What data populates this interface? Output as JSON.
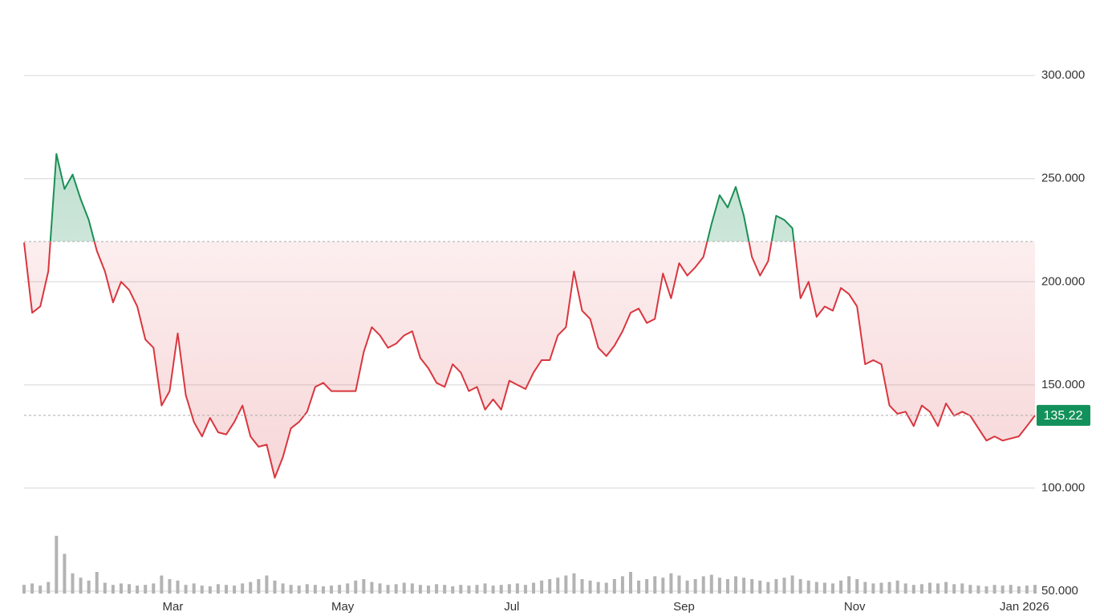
{
  "chart_data": {
    "type": "baseline",
    "values": [
      219,
      185,
      188,
      205,
      262,
      245,
      252,
      240,
      230,
      215,
      205,
      190,
      200,
      196,
      188,
      172,
      168,
      140,
      147,
      175,
      145,
      132,
      125,
      134,
      127,
      126,
      132,
      140,
      125,
      120,
      121,
      105,
      115,
      129,
      132,
      137,
      149,
      151,
      147,
      147,
      147,
      147,
      166,
      178,
      174,
      168,
      170,
      174,
      176,
      163,
      158,
      151,
      149,
      160,
      156,
      147,
      149,
      138,
      143,
      138,
      152,
      150,
      148,
      156,
      162,
      162,
      174,
      178,
      205,
      186,
      182,
      168,
      164,
      169,
      176,
      185,
      187,
      180,
      182,
      204,
      192,
      209,
      203,
      207,
      212,
      228,
      242,
      236,
      246,
      232,
      212,
      203,
      210,
      232,
      230,
      226,
      192,
      200,
      183,
      188,
      186,
      197,
      194,
      188,
      160,
      162,
      160,
      140,
      136,
      137,
      130,
      140,
      137,
      130,
      141,
      135,
      137,
      135,
      129,
      123,
      125,
      123,
      124,
      125,
      130,
      135.22
    ],
    "baseline": 219.5,
    "color_above": "#1a8f55",
    "color_below": "#d9363e",
    "last_price": 135.22,
    "last_price_color": "#13915a",
    "volume": {
      "color": "#b3b3b3",
      "lim": [
        0,
        100
      ],
      "values": [
        12,
        14,
        11,
        16,
        80,
        55,
        28,
        22,
        18,
        30,
        15,
        12,
        14,
        13,
        11,
        12,
        14,
        25,
        20,
        18,
        12,
        14,
        11,
        10,
        13,
        12,
        11,
        14,
        16,
        20,
        25,
        18,
        14,
        12,
        11,
        13,
        12,
        10,
        11,
        12,
        14,
        18,
        20,
        16,
        14,
        12,
        13,
        15,
        14,
        12,
        11,
        13,
        12,
        10,
        12,
        11,
        12,
        14,
        11,
        12,
        13,
        14,
        12,
        15,
        18,
        20,
        22,
        25,
        28,
        20,
        18,
        16,
        15,
        20,
        24,
        30,
        18,
        20,
        24,
        22,
        28,
        25,
        18,
        20,
        24,
        26,
        22,
        20,
        24,
        22,
        20,
        18,
        16,
        20,
        22,
        25,
        20,
        18,
        16,
        15,
        14,
        18,
        24,
        20,
        16,
        14,
        15,
        16,
        18,
        14,
        12,
        13,
        15,
        14,
        16,
        13,
        14,
        12,
        11,
        10,
        12,
        11,
        12,
        10,
        11,
        12
      ]
    },
    "xlim": [
      0,
      125
    ],
    "xticks": [
      {
        "value": 18.4,
        "label": "Mar"
      },
      {
        "value": 39.4,
        "label": "May"
      },
      {
        "value": 60.3,
        "label": "Jul"
      },
      {
        "value": 81.6,
        "label": "Sep"
      },
      {
        "value": 102.7,
        "label": "Nov"
      },
      {
        "value": 123.7,
        "label": "Jan 2026"
      }
    ],
    "ylim": [
      50,
      330
    ],
    "yticks": [
      {
        "value": 50,
        "label": "50.000"
      },
      {
        "value": 100,
        "label": "100.000"
      },
      {
        "value": 150,
        "label": "150.000"
      },
      {
        "value": 200,
        "label": "200.000"
      },
      {
        "value": 250,
        "label": "250.000"
      },
      {
        "value": 300,
        "label": "300.000"
      }
    ],
    "grid": true
  }
}
